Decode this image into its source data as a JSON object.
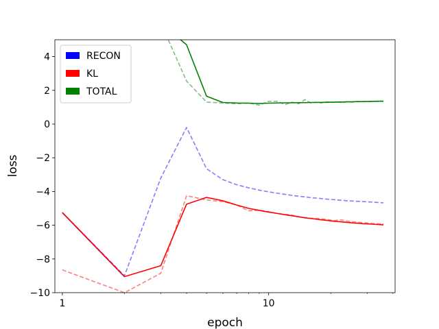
{
  "chart_data": {
    "type": "line",
    "title": "",
    "xlabel": "epoch",
    "ylabel": "loss",
    "xscale": "log",
    "xlim": [
      0.92,
      41
    ],
    "ylim": [
      -10,
      5
    ],
    "x_ticks": [
      {
        "value": 1,
        "label": "1"
      },
      {
        "value": 10,
        "label": "10"
      }
    ],
    "y_ticks": [
      {
        "value": -10,
        "label": "−10"
      },
      {
        "value": -8,
        "label": "−8"
      },
      {
        "value": -6,
        "label": "−6"
      },
      {
        "value": -4,
        "label": "−4"
      },
      {
        "value": -2,
        "label": "−2"
      },
      {
        "value": 0,
        "label": "0"
      },
      {
        "value": 2,
        "label": "2"
      },
      {
        "value": 4,
        "label": "4"
      }
    ],
    "x": [
      1,
      2,
      3,
      4,
      5,
      6,
      7,
      8,
      9,
      10,
      11,
      12,
      13,
      14,
      15,
      16,
      17,
      18,
      19,
      20,
      21,
      22,
      23,
      24,
      25,
      26,
      27,
      28,
      29,
      30,
      31,
      32,
      33,
      34,
      35,
      36
    ],
    "legend": {
      "placement": "upper-left",
      "entries": [
        {
          "label": "RECON",
          "color": "#0000ff"
        },
        {
          "label": "KL",
          "color": "#ff0000"
        },
        {
          "label": "TOTAL",
          "color": "#008000"
        }
      ]
    },
    "series": [
      {
        "name": "RECON",
        "style": "dashed",
        "color": "#0000ff",
        "opacity": 0.5,
        "values": [
          -5.25,
          -9.0,
          -3.2,
          -0.2,
          -2.65,
          -3.3,
          -3.6,
          -3.78,
          -3.92,
          -4.02,
          -4.1,
          -4.17,
          -4.23,
          -4.28,
          -4.32,
          -4.36,
          -4.39,
          -4.42,
          -4.45,
          -4.47,
          -4.49,
          -4.51,
          -4.53,
          -4.55,
          -4.56,
          -4.57,
          -4.58,
          -4.59,
          -4.6,
          -4.61,
          -4.62,
          -4.63,
          -4.64,
          -4.65,
          -4.66,
          -4.67
        ]
      },
      {
        "name": "KL",
        "style": "dashed",
        "color": "#ff0000",
        "opacity": 0.5,
        "values": [
          -8.65,
          -10.0,
          -8.85,
          -4.25,
          -4.5,
          -4.6,
          -4.8,
          -5.15,
          -5.1,
          -5.2,
          -5.3,
          -5.35,
          -5.4,
          -5.5,
          -5.55,
          -5.58,
          -5.6,
          -5.62,
          -5.65,
          -5.7,
          -5.72,
          -5.68,
          -5.7,
          -5.75,
          -5.78,
          -5.8,
          -5.82,
          -5.84,
          -5.85,
          -5.86,
          -5.88,
          -5.9,
          -5.9,
          -5.91,
          -5.92,
          -5.93
        ]
      },
      {
        "name": "TOTAL",
        "style": "dashed",
        "color": "#008000",
        "opacity": 0.5,
        "values": [
          6.0,
          6.0,
          6.0,
          2.55,
          1.3,
          1.25,
          1.2,
          1.25,
          1.12,
          1.35,
          1.35,
          1.15,
          1.3,
          1.2,
          1.45,
          1.25,
          1.3,
          1.25,
          1.32,
          1.28,
          1.3,
          1.3,
          1.27,
          1.33,
          1.31,
          1.3,
          1.35,
          1.32,
          1.33,
          1.33,
          1.34,
          1.35,
          1.35,
          1.37,
          1.35,
          1.35
        ]
      },
      {
        "name": "RECON",
        "style": "solid",
        "color": "#0000ff",
        "opacity": 1,
        "values": [
          -5.25,
          -9.05,
          null,
          null,
          null,
          null,
          null,
          null,
          null,
          null,
          null,
          null,
          null,
          null,
          null,
          null,
          null,
          null,
          null,
          null,
          null,
          null,
          null,
          null,
          null,
          null,
          null,
          null,
          null,
          null,
          null,
          null,
          null,
          null,
          null,
          null
        ]
      },
      {
        "name": "KL",
        "style": "solid",
        "color": "#ff0000",
        "opacity": 1,
        "values": [
          -5.25,
          -9.05,
          -8.4,
          -4.75,
          -4.35,
          -4.55,
          -4.8,
          -5.0,
          -5.12,
          -5.22,
          -5.3,
          -5.38,
          -5.44,
          -5.5,
          -5.56,
          -5.6,
          -5.64,
          -5.68,
          -5.71,
          -5.74,
          -5.77,
          -5.79,
          -5.81,
          -5.83,
          -5.85,
          -5.87,
          -5.88,
          -5.9,
          -5.91,
          -5.92,
          -5.93,
          -5.94,
          -5.95,
          -5.96,
          -5.97,
          -5.98
        ]
      },
      {
        "name": "TOTAL",
        "style": "solid",
        "color": "#008000",
        "opacity": 1,
        "values": [
          6.0,
          6.0,
          6.0,
          4.7,
          1.65,
          1.28,
          1.25,
          1.24,
          1.22,
          1.24,
          1.25,
          1.26,
          1.26,
          1.27,
          1.27,
          1.28,
          1.28,
          1.29,
          1.29,
          1.3,
          1.3,
          1.31,
          1.31,
          1.32,
          1.32,
          1.33,
          1.33,
          1.33,
          1.34,
          1.34,
          1.34,
          1.35,
          1.35,
          1.35,
          1.36,
          1.36
        ]
      }
    ]
  }
}
